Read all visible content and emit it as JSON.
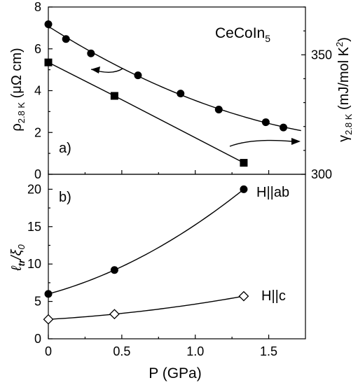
{
  "chart_data": [
    {
      "panel_label": "a)",
      "type": "scatter",
      "annotation": {
        "main": "CeCoIn",
        "sub": "5"
      },
      "xlim": [
        0,
        1.75
      ],
      "ylim": [
        0,
        8
      ],
      "ylabel": {
        "main": "ρ",
        "sub": "2.8 K",
        "unit": " (μΩ cm)"
      },
      "y_ticks": [
        "0",
        "2",
        "4",
        "6",
        "8"
      ],
      "y2lim": [
        300,
        370
      ],
      "y2label": {
        "main": "γ",
        "sub": "2.8 K",
        "unit": " (mJ/mol K",
        "sup": "2",
        "close": ")"
      },
      "y2_ticks": [
        "300",
        "350"
      ],
      "series": [
        {
          "marker": "square-filled",
          "axis": "left",
          "x": [
            0.0,
            0.45,
            1.33
          ],
          "y": [
            5.35,
            3.75,
            0.55
          ]
        },
        {
          "marker": "circle-filled",
          "axis": "right",
          "x": [
            0.0,
            0.12,
            0.29,
            0.61,
            0.9,
            1.16,
            1.48,
            1.6
          ],
          "y": [
            362.8,
            356.6,
            350.6,
            341.4,
            333.8,
            327.1,
            321.8,
            319.6
          ]
        }
      ]
    },
    {
      "panel_label": "b)",
      "type": "scatter",
      "xlim": [
        0,
        1.75
      ],
      "ylim": [
        0,
        22
      ],
      "xlabel": "P (GPa)",
      "x_ticks": [
        "0",
        "0.5",
        "1.0",
        "1.5"
      ],
      "y_ticks": [
        "0",
        "5",
        "10",
        "15",
        "20"
      ],
      "ylabel": {
        "main": "ℓ",
        "sub1": "tr",
        "slash": "/ξ",
        "sub2": "0"
      },
      "series": [
        {
          "name": "H||ab",
          "marker": "circle-filled",
          "x": [
            0.0,
            0.45,
            1.33
          ],
          "y": [
            6.0,
            9.2,
            20.0
          ]
        },
        {
          "name": "H||c",
          "marker": "diamond-open",
          "x": [
            0.0,
            0.45,
            1.33
          ],
          "y": [
            2.6,
            3.3,
            5.7
          ]
        }
      ]
    }
  ]
}
